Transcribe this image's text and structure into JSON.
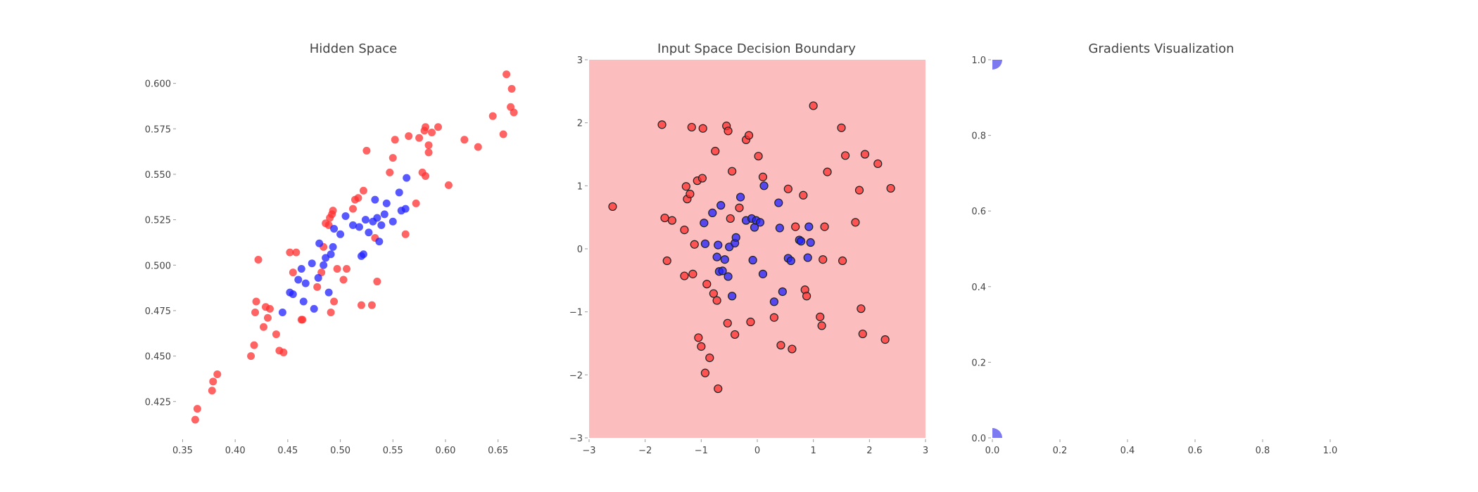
{
  "colors": {
    "red": "#ff3030",
    "blue": "#2020ff",
    "boundary_fill": "#fbbdbd",
    "grad_dot": "#6f6cf0",
    "text": "#444444"
  },
  "chart_data": [
    {
      "type": "scatter",
      "title": "Hidden Space",
      "xlabel": "",
      "ylabel": "",
      "xlim": [
        0.345,
        0.675
      ],
      "ylim": [
        0.405,
        0.613
      ],
      "xticks": [
        "0.35",
        "0.40",
        "0.45",
        "0.50",
        "0.55",
        "0.60",
        "0.65"
      ],
      "yticks": [
        "0.425",
        "0.450",
        "0.475",
        "0.500",
        "0.525",
        "0.550",
        "0.575",
        "0.600"
      ],
      "grid": false,
      "series": [
        {
          "color": "red",
          "points": [
            [
              0.362,
              0.415
            ],
            [
              0.364,
              0.421
            ],
            [
              0.378,
              0.431
            ],
            [
              0.379,
              0.436
            ],
            [
              0.383,
              0.44
            ],
            [
              0.415,
              0.45
            ],
            [
              0.418,
              0.456
            ],
            [
              0.419,
              0.474
            ],
            [
              0.42,
              0.48
            ],
            [
              0.422,
              0.503
            ],
            [
              0.427,
              0.466
            ],
            [
              0.429,
              0.477
            ],
            [
              0.431,
              0.471
            ],
            [
              0.433,
              0.476
            ],
            [
              0.439,
              0.462
            ],
            [
              0.442,
              0.453
            ],
            [
              0.446,
              0.452
            ],
            [
              0.452,
              0.507
            ],
            [
              0.455,
              0.496
            ],
            [
              0.458,
              0.507
            ],
            [
              0.463,
              0.47
            ],
            [
              0.464,
              0.47
            ],
            [
              0.478,
              0.488
            ],
            [
              0.482,
              0.496
            ],
            [
              0.484,
              0.51
            ],
            [
              0.486,
              0.523
            ],
            [
              0.489,
              0.522
            ],
            [
              0.49,
              0.526
            ],
            [
              0.491,
              0.474
            ],
            [
              0.492,
              0.528
            ],
            [
              0.493,
              0.53
            ],
            [
              0.494,
              0.48
            ],
            [
              0.497,
              0.498
            ],
            [
              0.503,
              0.492
            ],
            [
              0.506,
              0.498
            ],
            [
              0.512,
              0.531
            ],
            [
              0.514,
              0.536
            ],
            [
              0.517,
              0.537
            ],
            [
              0.52,
              0.478
            ],
            [
              0.522,
              0.541
            ],
            [
              0.525,
              0.563
            ],
            [
              0.53,
              0.478
            ],
            [
              0.533,
              0.515
            ],
            [
              0.535,
              0.491
            ],
            [
              0.547,
              0.551
            ],
            [
              0.55,
              0.559
            ],
            [
              0.552,
              0.569
            ],
            [
              0.562,
              0.517
            ],
            [
              0.565,
              0.571
            ],
            [
              0.572,
              0.534
            ],
            [
              0.575,
              0.57
            ],
            [
              0.578,
              0.551
            ],
            [
              0.58,
              0.574
            ],
            [
              0.581,
              0.576
            ],
            [
              0.581,
              0.549
            ],
            [
              0.584,
              0.566
            ],
            [
              0.584,
              0.562
            ],
            [
              0.587,
              0.573
            ],
            [
              0.593,
              0.576
            ],
            [
              0.603,
              0.544
            ],
            [
              0.618,
              0.569
            ],
            [
              0.631,
              0.565
            ],
            [
              0.645,
              0.582
            ],
            [
              0.655,
              0.572
            ],
            [
              0.658,
              0.605
            ],
            [
              0.662,
              0.587
            ],
            [
              0.663,
              0.597
            ],
            [
              0.665,
              0.584
            ]
          ]
        },
        {
          "color": "blue",
          "points": [
            [
              0.445,
              0.474
            ],
            [
              0.452,
              0.485
            ],
            [
              0.455,
              0.484
            ],
            [
              0.46,
              0.492
            ],
            [
              0.463,
              0.498
            ],
            [
              0.465,
              0.48
            ],
            [
              0.467,
              0.49
            ],
            [
              0.473,
              0.501
            ],
            [
              0.475,
              0.476
            ],
            [
              0.479,
              0.493
            ],
            [
              0.48,
              0.512
            ],
            [
              0.484,
              0.5
            ],
            [
              0.486,
              0.504
            ],
            [
              0.489,
              0.485
            ],
            [
              0.491,
              0.506
            ],
            [
              0.493,
              0.51
            ],
            [
              0.494,
              0.52
            ],
            [
              0.5,
              0.517
            ],
            [
              0.505,
              0.527
            ],
            [
              0.512,
              0.522
            ],
            [
              0.518,
              0.521
            ],
            [
              0.52,
              0.505
            ],
            [
              0.522,
              0.506
            ],
            [
              0.524,
              0.525
            ],
            [
              0.527,
              0.518
            ],
            [
              0.531,
              0.524
            ],
            [
              0.533,
              0.536
            ],
            [
              0.535,
              0.526
            ],
            [
              0.537,
              0.513
            ],
            [
              0.539,
              0.522
            ],
            [
              0.542,
              0.528
            ],
            [
              0.544,
              0.534
            ],
            [
              0.55,
              0.524
            ],
            [
              0.556,
              0.54
            ],
            [
              0.558,
              0.53
            ],
            [
              0.562,
              0.531
            ],
            [
              0.563,
              0.548
            ]
          ]
        }
      ]
    },
    {
      "type": "scatter",
      "title": "Input Space Decision Boundary",
      "xlabel": "",
      "ylabel": "",
      "xlim": [
        -3,
        3
      ],
      "ylim": [
        -3,
        3
      ],
      "xticks": [
        "−3",
        "−2",
        "−1",
        "0",
        "1",
        "2",
        "3"
      ],
      "yticks": [
        "−3",
        "−2",
        "−1",
        "0",
        "1",
        "2",
        "3"
      ],
      "grid": false,
      "background": "boundary_fill",
      "series": [
        {
          "color": "red",
          "points": [
            [
              -2.58,
              0.67
            ],
            [
              -1.7,
              1.97
            ],
            [
              -1.65,
              0.49
            ],
            [
              -1.61,
              -0.19
            ],
            [
              -1.52,
              0.45
            ],
            [
              -1.3,
              0.3
            ],
            [
              -1.3,
              -0.43
            ],
            [
              -1.27,
              0.99
            ],
            [
              -1.25,
              0.79
            ],
            [
              -1.2,
              0.87
            ],
            [
              -1.17,
              1.93
            ],
            [
              -1.15,
              -0.4
            ],
            [
              -1.12,
              0.07
            ],
            [
              -1.07,
              1.08
            ],
            [
              -1.05,
              -1.41
            ],
            [
              -1.0,
              -1.55
            ],
            [
              -0.98,
              1.12
            ],
            [
              -0.97,
              1.91
            ],
            [
              -0.93,
              -1.97
            ],
            [
              -0.9,
              -0.56
            ],
            [
              -0.85,
              -1.73
            ],
            [
              -0.78,
              -0.71
            ],
            [
              -0.75,
              1.55
            ],
            [
              -0.72,
              -0.82
            ],
            [
              -0.7,
              -2.22
            ],
            [
              -0.55,
              1.95
            ],
            [
              -0.53,
              -1.18
            ],
            [
              -0.52,
              1.87
            ],
            [
              -0.48,
              0.48
            ],
            [
              -0.45,
              1.23
            ],
            [
              -0.4,
              -1.36
            ],
            [
              -0.32,
              0.65
            ],
            [
              -0.2,
              1.73
            ],
            [
              -0.15,
              1.8
            ],
            [
              -0.12,
              -1.16
            ],
            [
              0.02,
              1.47
            ],
            [
              0.1,
              1.14
            ],
            [
              0.3,
              -1.09
            ],
            [
              0.42,
              -1.53
            ],
            [
              0.55,
              0.95
            ],
            [
              0.62,
              -1.59
            ],
            [
              0.68,
              0.35
            ],
            [
              0.82,
              0.85
            ],
            [
              0.85,
              -0.65
            ],
            [
              0.88,
              -0.75
            ],
            [
              1.0,
              2.27
            ],
            [
              1.12,
              -1.08
            ],
            [
              1.15,
              -1.22
            ],
            [
              1.17,
              -0.17
            ],
            [
              1.2,
              0.35
            ],
            [
              1.25,
              1.22
            ],
            [
              1.5,
              1.92
            ],
            [
              1.52,
              -0.19
            ],
            [
              1.57,
              1.48
            ],
            [
              1.75,
              0.42
            ],
            [
              1.82,
              0.93
            ],
            [
              1.85,
              -0.95
            ],
            [
              1.88,
              -1.35
            ],
            [
              1.92,
              1.5
            ],
            [
              2.15,
              1.35
            ],
            [
              2.28,
              -1.44
            ],
            [
              2.38,
              0.96
            ]
          ]
        },
        {
          "color": "blue",
          "points": [
            [
              -0.95,
              0.41
            ],
            [
              -0.93,
              0.08
            ],
            [
              -0.8,
              0.57
            ],
            [
              -0.72,
              -0.13
            ],
            [
              -0.7,
              0.06
            ],
            [
              -0.68,
              -0.36
            ],
            [
              -0.65,
              0.69
            ],
            [
              -0.62,
              -0.35
            ],
            [
              -0.58,
              -0.17
            ],
            [
              -0.52,
              -0.44
            ],
            [
              -0.5,
              0.03
            ],
            [
              -0.45,
              -0.75
            ],
            [
              -0.4,
              0.09
            ],
            [
              -0.38,
              0.18
            ],
            [
              -0.3,
              0.82
            ],
            [
              -0.2,
              0.45
            ],
            [
              -0.1,
              0.48
            ],
            [
              -0.08,
              -0.18
            ],
            [
              -0.05,
              0.34
            ],
            [
              -0.02,
              0.45
            ],
            [
              0.05,
              0.42
            ],
            [
              0.12,
              1.0
            ],
            [
              0.1,
              -0.4
            ],
            [
              0.3,
              -0.84
            ],
            [
              0.38,
              0.73
            ],
            [
              0.4,
              0.33
            ],
            [
              0.45,
              -0.68
            ],
            [
              0.55,
              -0.15
            ],
            [
              0.6,
              -0.19
            ],
            [
              0.75,
              0.14
            ],
            [
              0.78,
              0.12
            ],
            [
              0.9,
              -0.14
            ],
            [
              0.92,
              0.35
            ],
            [
              0.95,
              0.1
            ]
          ]
        }
      ]
    },
    {
      "type": "scatter",
      "title": "Gradients Visualization",
      "xlabel": "",
      "ylabel": "",
      "xlim": [
        0,
        1
      ],
      "ylim": [
        0,
        1
      ],
      "xticks": [
        "0.0",
        "0.2",
        "0.4",
        "0.6",
        "0.8",
        "1.0"
      ],
      "yticks": [
        "0.0",
        "0.2",
        "0.4",
        "0.6",
        "0.8",
        "1.0"
      ],
      "grid": false,
      "series": [
        {
          "color": "grad_dot",
          "points": [
            [
              0.0,
              1.0
            ],
            [
              0.0,
              0.0
            ]
          ]
        }
      ]
    }
  ]
}
